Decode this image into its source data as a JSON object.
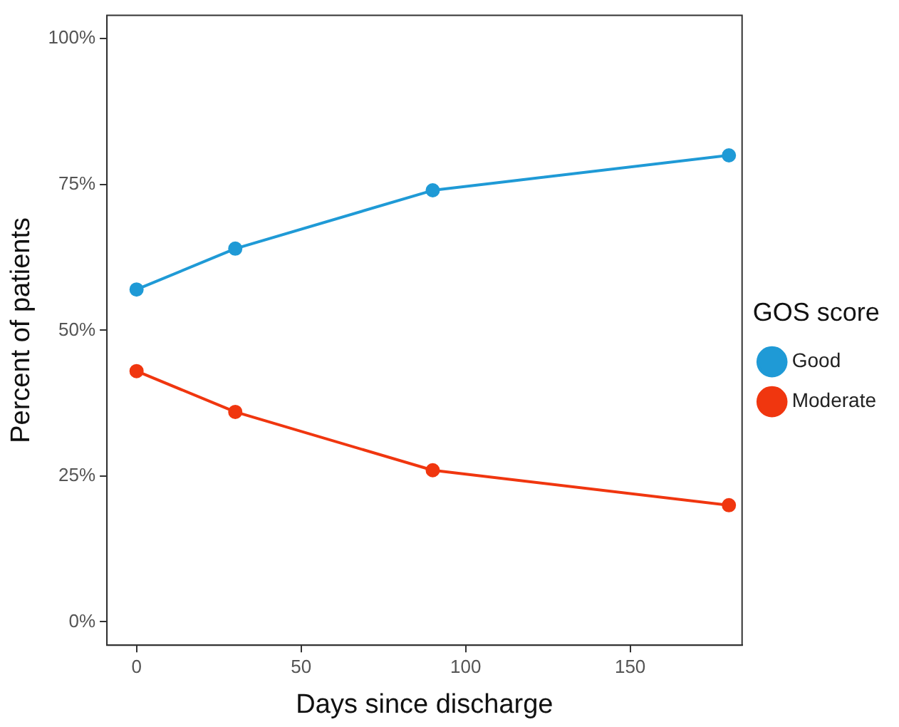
{
  "chart_data": {
    "type": "line",
    "xlabel": "Days since discharge",
    "ylabel": "Percent of patients",
    "legend_title": "GOS score",
    "x": [
      0,
      30,
      90,
      180
    ],
    "series": [
      {
        "name": "Good",
        "color": "#1f9ad6",
        "values": [
          57,
          64,
          74,
          80
        ]
      },
      {
        "name": "Moderate",
        "color": "#f0360f",
        "values": [
          43,
          36,
          26,
          20
        ]
      }
    ],
    "xlim": [
      -9,
      184
    ],
    "xticks": [
      0,
      50,
      100,
      150
    ],
    "ylim": [
      -4,
      104
    ],
    "yticks": [
      {
        "value": 0,
        "label": "0%"
      },
      {
        "value": 25,
        "label": "25%"
      },
      {
        "value": 50,
        "label": "50%"
      },
      {
        "value": 75,
        "label": "75%"
      },
      {
        "value": 100,
        "label": "100%"
      }
    ],
    "grid": false,
    "legend": "right",
    "marker": "circle",
    "line_style": "solid"
  }
}
